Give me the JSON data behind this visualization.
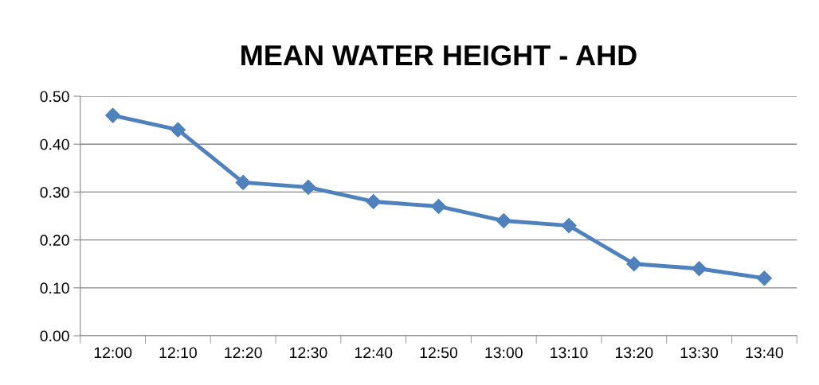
{
  "chart_data": {
    "type": "line",
    "title": "MEAN WATER HEIGHT - AHD",
    "categories": [
      "12:00",
      "12:10",
      "12:20",
      "12:30",
      "12:40",
      "12:50",
      "13:00",
      "13:10",
      "13:20",
      "13:30",
      "13:40"
    ],
    "series": [
      {
        "color": "#4f81bd",
        "values": [
          0.46,
          0.43,
          0.32,
          0.31,
          0.28,
          0.27,
          0.24,
          0.23,
          0.15,
          0.14,
          0.12
        ]
      }
    ],
    "ylim": [
      0,
      0.5
    ],
    "yticks": [
      {
        "value": 0,
        "label": "0.00"
      },
      {
        "value": 0.1,
        "label": "0.10"
      },
      {
        "value": 0.2,
        "label": "0.20"
      },
      {
        "value": 0.3,
        "label": "0.30"
      },
      {
        "value": 0.4,
        "label": "0.40"
      },
      {
        "value": 0.5,
        "label": "0.50"
      }
    ],
    "grid": "y",
    "marker": "diamond",
    "line_style": "solid"
  }
}
